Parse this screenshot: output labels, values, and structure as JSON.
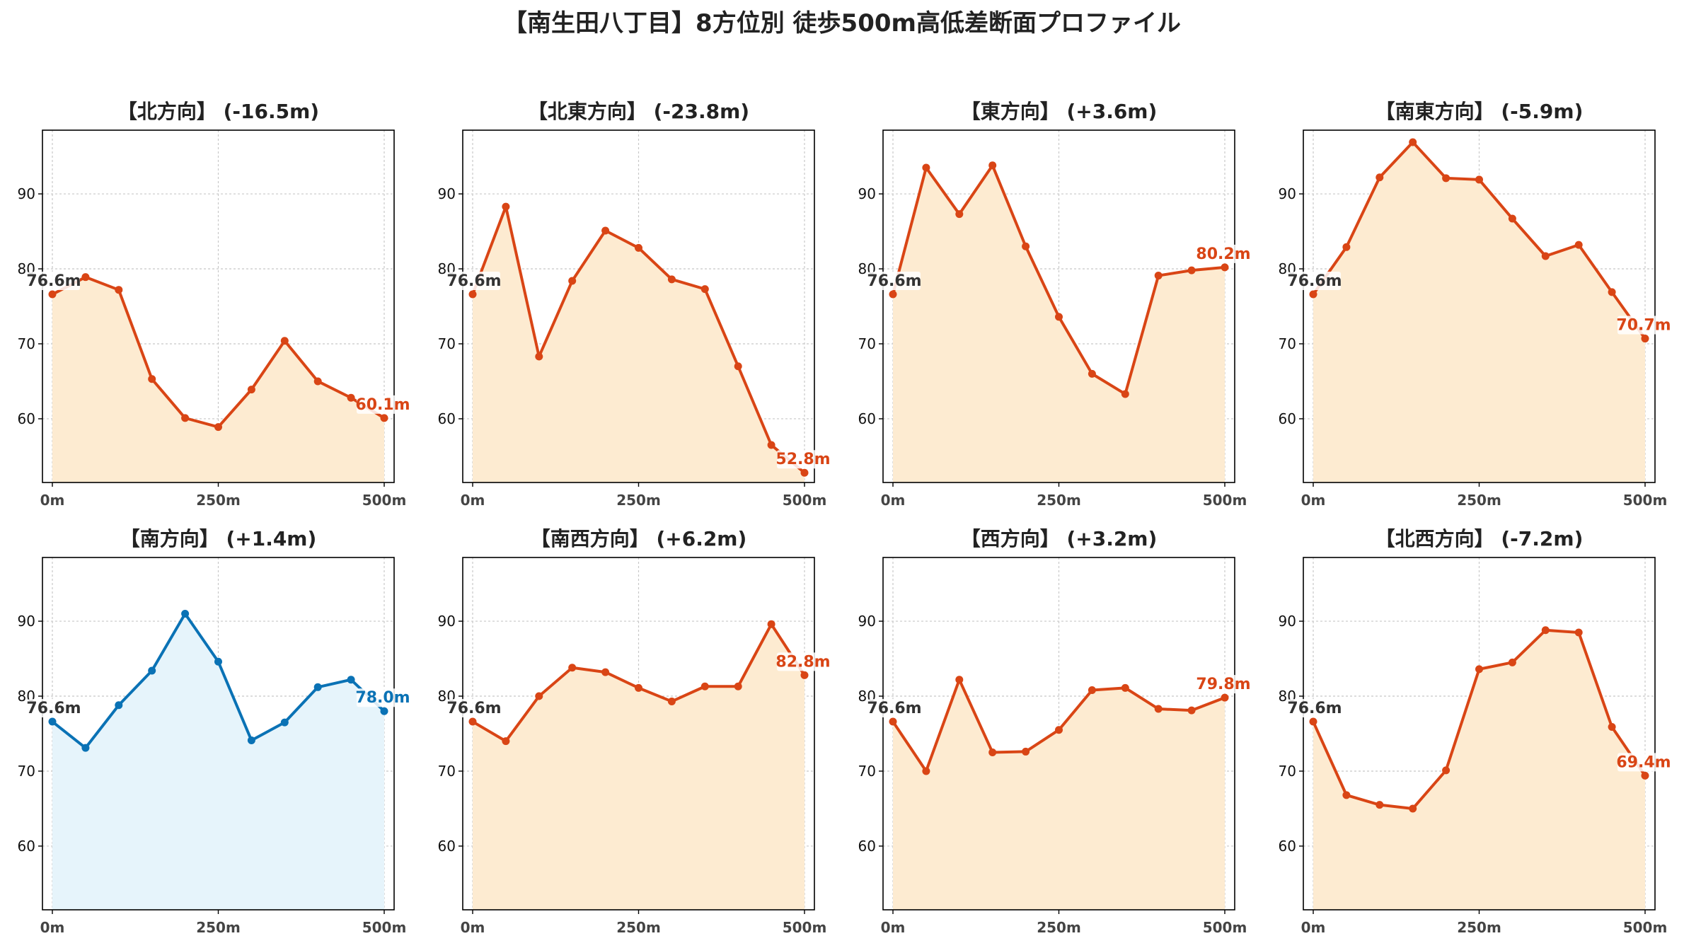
{
  "title": "【南生田八丁目】8方位別 徒歩500m高低差断面プロファイル",
  "colors": {
    "down": "#d94515",
    "up": "#0a72b5",
    "fill_down": "#fdebd1",
    "fill_up": "#e6f4fb",
    "label_start": "#333333"
  },
  "chart_data": [
    {
      "type": "area",
      "title": "【北方向】 (-16.5m)",
      "x": [
        0,
        50,
        100,
        150,
        200,
        250,
        300,
        350,
        400,
        450,
        500
      ],
      "xticks": [
        "0m",
        "250m",
        "500m"
      ],
      "yticks": [
        60,
        70,
        80,
        90
      ],
      "ylim": [
        51.5,
        98.5
      ],
      "grid": true,
      "values": [
        76.6,
        78.9,
        77.2,
        65.3,
        60.1,
        58.9,
        63.9,
        70.4,
        65.0,
        62.8,
        60.1
      ],
      "start_label": "76.6m",
      "end_label": "60.1m",
      "direction": "down"
    },
    {
      "type": "area",
      "title": "【北東方向】 (-23.8m)",
      "x": [
        0,
        50,
        100,
        150,
        200,
        250,
        300,
        350,
        400,
        450,
        500
      ],
      "xticks": [
        "0m",
        "250m",
        "500m"
      ],
      "yticks": [
        60,
        70,
        80,
        90
      ],
      "ylim": [
        51.5,
        98.5
      ],
      "grid": true,
      "values": [
        76.6,
        88.3,
        68.3,
        78.4,
        85.1,
        82.8,
        78.6,
        77.3,
        67.0,
        56.5,
        52.8
      ],
      "start_label": "76.6m",
      "end_label": "52.8m",
      "direction": "down"
    },
    {
      "type": "area",
      "title": "【東方向】 (+3.6m)",
      "x": [
        0,
        50,
        100,
        150,
        200,
        250,
        300,
        350,
        400,
        450,
        500
      ],
      "xticks": [
        "0m",
        "250m",
        "500m"
      ],
      "yticks": [
        60,
        70,
        80,
        90
      ],
      "ylim": [
        51.5,
        98.5
      ],
      "grid": true,
      "values": [
        76.6,
        93.5,
        87.3,
        93.8,
        83.0,
        73.6,
        66.0,
        63.3,
        79.1,
        79.8,
        80.2
      ],
      "start_label": "76.6m",
      "end_label": "80.2m",
      "direction": "down"
    },
    {
      "type": "area",
      "title": "【南東方向】 (-5.9m)",
      "x": [
        0,
        50,
        100,
        150,
        200,
        250,
        300,
        350,
        400,
        450,
        500
      ],
      "xticks": [
        "0m",
        "250m",
        "500m"
      ],
      "yticks": [
        60,
        70,
        80,
        90
      ],
      "ylim": [
        51.5,
        98.5
      ],
      "grid": true,
      "values": [
        76.6,
        82.9,
        92.2,
        96.9,
        92.1,
        91.9,
        86.7,
        81.7,
        83.2,
        76.9,
        70.7
      ],
      "start_label": "76.6m",
      "end_label": "70.7m",
      "direction": "down"
    },
    {
      "type": "area",
      "title": "【南方向】 (+1.4m)",
      "x": [
        0,
        50,
        100,
        150,
        200,
        250,
        300,
        350,
        400,
        450,
        500
      ],
      "xticks": [
        "0m",
        "250m",
        "500m"
      ],
      "yticks": [
        60,
        70,
        80,
        90
      ],
      "ylim": [
        51.5,
        98.5
      ],
      "grid": true,
      "values": [
        76.6,
        73.1,
        78.8,
        83.4,
        91.0,
        84.6,
        74.1,
        76.5,
        81.2,
        82.2,
        78.0
      ],
      "start_label": "76.6m",
      "end_label": "78.0m",
      "direction": "up"
    },
    {
      "type": "area",
      "title": "【南西方向】 (+6.2m)",
      "x": [
        0,
        50,
        100,
        150,
        200,
        250,
        300,
        350,
        400,
        450,
        500
      ],
      "xticks": [
        "0m",
        "250m",
        "500m"
      ],
      "yticks": [
        60,
        70,
        80,
        90
      ],
      "ylim": [
        51.5,
        98.5
      ],
      "grid": true,
      "values": [
        76.6,
        74.0,
        80.0,
        83.8,
        83.2,
        81.1,
        79.3,
        81.3,
        81.3,
        89.6,
        82.8
      ],
      "start_label": "76.6m",
      "end_label": "82.8m",
      "direction": "down"
    },
    {
      "type": "area",
      "title": "【西方向】 (+3.2m)",
      "x": [
        0,
        50,
        100,
        150,
        200,
        250,
        300,
        350,
        400,
        450,
        500
      ],
      "xticks": [
        "0m",
        "250m",
        "500m"
      ],
      "yticks": [
        60,
        70,
        80,
        90
      ],
      "ylim": [
        51.5,
        98.5
      ],
      "grid": true,
      "values": [
        76.6,
        70.0,
        82.2,
        72.5,
        72.6,
        75.5,
        80.8,
        81.1,
        78.3,
        78.1,
        79.8
      ],
      "start_label": "76.6m",
      "end_label": "79.8m",
      "direction": "down"
    },
    {
      "type": "area",
      "title": "【北西方向】 (-7.2m)",
      "x": [
        0,
        50,
        100,
        150,
        200,
        250,
        300,
        350,
        400,
        450,
        500
      ],
      "xticks": [
        "0m",
        "250m",
        "500m"
      ],
      "yticks": [
        60,
        70,
        80,
        90
      ],
      "ylim": [
        51.5,
        98.5
      ],
      "grid": true,
      "values": [
        76.6,
        66.8,
        65.5,
        65.0,
        70.1,
        83.6,
        84.5,
        88.8,
        88.5,
        75.9,
        69.4
      ],
      "start_label": "76.6m",
      "end_label": "69.4m",
      "direction": "down"
    }
  ]
}
